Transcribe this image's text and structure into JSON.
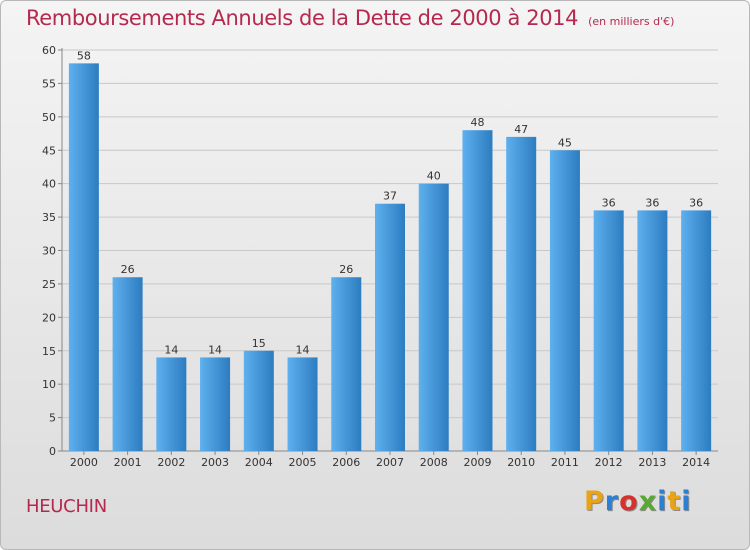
{
  "header": {
    "title": "Remboursements Annuels de la Dette de 2000 à 2014",
    "unit": "(en milliers d'€)"
  },
  "footer": {
    "city": "HEUCHIN",
    "logo_letters": [
      "P",
      "r",
      "o",
      "x",
      "i",
      "t",
      "i"
    ],
    "logo_colors": [
      "#e8a317",
      "#2b7fd4",
      "#d6322d",
      "#5aa832",
      "#2b7fd4",
      "#e8a317",
      "#2b7fd4"
    ]
  },
  "colors": {
    "bar_light": "#5fb0ee",
    "bar_dark": "#2c7cc0",
    "grid": "#c8c8c8",
    "axis": "#888888",
    "title": "#b5294f"
  },
  "chart_data": {
    "type": "bar",
    "categories": [
      "2000",
      "2001",
      "2002",
      "2003",
      "2004",
      "2005",
      "2006",
      "2007",
      "2008",
      "2009",
      "2010",
      "2011",
      "2012",
      "2013",
      "2014"
    ],
    "values": [
      58,
      26,
      14,
      14,
      15,
      14,
      26,
      37,
      40,
      48,
      47,
      45,
      36,
      36,
      36
    ],
    "title": "Remboursements Annuels de la Dette de 2000 à 2014",
    "ylim": [
      0,
      60
    ],
    "yticks": [
      0,
      5,
      10,
      15,
      20,
      25,
      30,
      35,
      40,
      45,
      50,
      55,
      60
    ],
    "grid": true
  }
}
